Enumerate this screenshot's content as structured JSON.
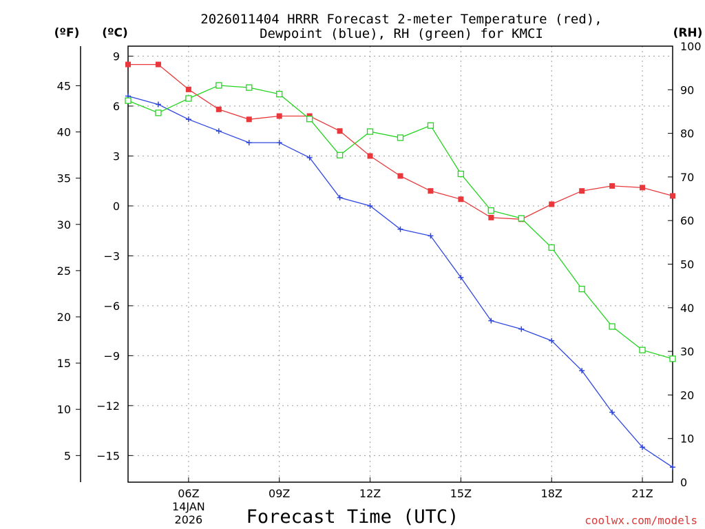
{
  "chart_data": {
    "type": "line",
    "title_lines": [
      "2026011404 HRRR Forecast 2-meter Temperature (red),",
      "Dewpoint (blue), RH (green) for KMCI"
    ],
    "xlabel": "Forecast Time (UTC)",
    "credit": "coolwx.com/models",
    "units": {
      "fahrenheit": "(ºF)",
      "celsius": "(ºC)",
      "rh": "(RH)"
    },
    "x_hours": [
      4,
      5,
      6,
      7,
      8,
      9,
      10,
      11,
      12,
      13,
      14,
      15,
      16,
      17,
      18,
      19,
      20,
      21,
      22
    ],
    "xlim": [
      4,
      22
    ],
    "x_ticks": [
      {
        "hour": 6,
        "label": "06Z",
        "sub": [
          "14JAN",
          "2026"
        ]
      },
      {
        "hour": 9,
        "label": "09Z"
      },
      {
        "hour": 12,
        "label": "12Z"
      },
      {
        "hour": 15,
        "label": "15Z"
      },
      {
        "hour": 18,
        "label": "18Z"
      },
      {
        "hour": 21,
        "label": "21Z"
      }
    ],
    "celsius_axis": {
      "range": [
        -16.6,
        9.6
      ],
      "ticks": [
        "9",
        "6",
        "3",
        "0",
        "−3",
        "−6",
        "−9",
        "−12",
        "−15"
      ],
      "tick_values": [
        9,
        6,
        3,
        0,
        -3,
        -6,
        -9,
        -12,
        -15
      ]
    },
    "fahrenheit_axis": {
      "ticks": [
        "45",
        "40",
        "35",
        "30",
        "25",
        "20",
        "15",
        "10",
        "5"
      ],
      "tick_values": [
        45,
        40,
        35,
        30,
        25,
        20,
        15,
        10,
        5
      ]
    },
    "rh_axis": {
      "range": [
        0,
        100
      ],
      "ticks": [
        "100",
        "90",
        "80",
        "70",
        "60",
        "50",
        "40",
        "30",
        "20",
        "10",
        "0"
      ],
      "tick_values": [
        100,
        90,
        80,
        70,
        60,
        50,
        40,
        30,
        20,
        10,
        0
      ]
    },
    "series": [
      {
        "name": "Temperature",
        "axis": "celsius",
        "color": "#e8383b",
        "marker": "filled-square",
        "values": [
          8.5,
          8.5,
          7.0,
          5.8,
          5.2,
          5.4,
          5.4,
          4.5,
          3.0,
          1.8,
          0.9,
          0.4,
          -0.7,
          -0.8,
          0.1,
          0.9,
          1.2,
          1.1,
          0.6
        ]
      },
      {
        "name": "Dewpoint",
        "axis": "celsius",
        "color": "#2d45e0",
        "marker": "plus",
        "values": [
          6.6,
          6.1,
          5.2,
          4.5,
          3.8,
          3.8,
          2.9,
          0.5,
          0.0,
          -1.4,
          -1.8,
          -4.3,
          -6.9,
          -7.4,
          -8.1,
          -9.9,
          -12.4,
          -14.5,
          -15.7
        ]
      },
      {
        "name": "RH",
        "axis": "rh",
        "color": "#22d41e",
        "marker": "open-square",
        "values": [
          87.5,
          84.7,
          88.0,
          91.0,
          90.5,
          89.0,
          83.3,
          75.0,
          80.4,
          79.0,
          81.8,
          70.7,
          62.3,
          60.5,
          53.8,
          44.3,
          35.7,
          30.3,
          28.3
        ]
      }
    ]
  }
}
